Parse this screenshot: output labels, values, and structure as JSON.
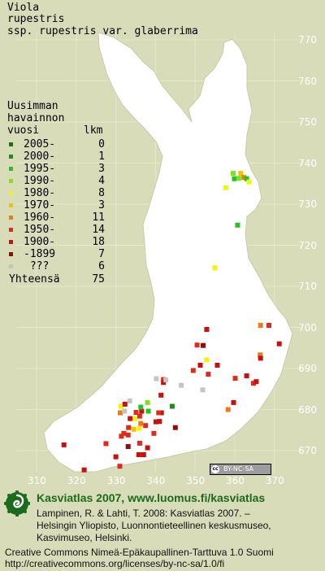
{
  "title": {
    "line1": "Viola",
    "line2": "rupestris",
    "line3": "ssp. rupestris var. glaberrima"
  },
  "legend": {
    "head1": "Uusimman",
    "head2": "havainnon",
    "head3": "vuosi",
    "head3_count": "lkm",
    "rows": [
      {
        "label": "2005-",
        "count": "0",
        "color": "#0a7a0a"
      },
      {
        "label": "2000-",
        "count": "1",
        "color": "#1e8c1e"
      },
      {
        "label": "1995-",
        "count": "3",
        "color": "#22c422"
      },
      {
        "label": "1990-",
        "count": "4",
        "color": "#7ee21a"
      },
      {
        "label": "1980-",
        "count": "8",
        "color": "#f4f40a"
      },
      {
        "label": "1970-",
        "count": "3",
        "color": "#f0c400"
      },
      {
        "label": "1960-",
        "count": "11",
        "color": "#f07a10"
      },
      {
        "label": "1950-",
        "count": "14",
        "color": "#e02a1a"
      },
      {
        "label": "1900-",
        "count": "18",
        "color": "#c81010"
      },
      {
        "label": "-1899",
        "count": "7",
        "color": "#960a0a"
      },
      {
        "label": " ???",
        "count": "6",
        "color": "#c4c4c4"
      }
    ],
    "total_label": "Yhteensä",
    "total_count": "75"
  },
  "y_axis": [
    "770",
    "760",
    "750",
    "740",
    "730",
    "720",
    "710",
    "700",
    "690",
    "680",
    "670"
  ],
  "x_axis": [
    "310",
    "320",
    "330",
    "340",
    "350",
    "360",
    "370"
  ],
  "cc_badge": {
    "icon": "cc",
    "text": "BY-NC-SA"
  },
  "footer": {
    "title": "Kasviatlas 2007, www.luomus.fi/kasviatlas",
    "line1": "Lampinen, R. & Lahti, T. 2008: Kasviatlas 2007. –",
    "line2": "Helsingin Yliopisto, Luonnontieteellinen keskusmuseo,",
    "line3": "Kasvimuseo, Helsinki.",
    "license1": "Creative Commons Nimeä-Epäkaupallinen-Tarttuva 1.0 Suomi",
    "license2": "http://creativecommons.org/licenses/by-nc-sa/1.0/fi"
  },
  "map": {
    "land_color": "#ffffff",
    "background_color": "#d8dcb8",
    "grid_color": "#e4e8cc",
    "observations": [
      {
        "x": 359.6,
        "y": 737.5,
        "c": 3
      },
      {
        "x": 361.5,
        "y": 737.5,
        "c": 5
      },
      {
        "x": 362.3,
        "y": 736.5,
        "c": 6
      },
      {
        "x": 359.9,
        "y": 736.2,
        "c": 2
      },
      {
        "x": 361.0,
        "y": 736.3,
        "c": 3
      },
      {
        "x": 363.0,
        "y": 736.2,
        "c": 2
      },
      {
        "x": 363.6,
        "y": 735.4,
        "c": 4
      },
      {
        "x": 357.7,
        "y": 734.0,
        "c": 4
      },
      {
        "x": 360.7,
        "y": 724.9,
        "c": 2
      },
      {
        "x": 355.0,
        "y": 714.5,
        "c": 4
      },
      {
        "x": 366.5,
        "y": 700.5,
        "c": 6
      },
      {
        "x": 368.6,
        "y": 700.5,
        "c": 7
      },
      {
        "x": 371.2,
        "y": 696.0,
        "c": 8
      },
      {
        "x": 366.4,
        "y": 693.3,
        "c": 6
      },
      {
        "x": 366.5,
        "y": 692.5,
        "c": 8
      },
      {
        "x": 363.0,
        "y": 688.2,
        "c": 8
      },
      {
        "x": 364.7,
        "y": 686.4,
        "c": 7
      },
      {
        "x": 365.4,
        "y": 686.8,
        "c": 8
      },
      {
        "x": 360.1,
        "y": 687.6,
        "c": 7
      },
      {
        "x": 359.7,
        "y": 681.7,
        "c": 8
      },
      {
        "x": 358.3,
        "y": 680.0,
        "c": 6
      },
      {
        "x": 352.9,
        "y": 699.5,
        "c": 8
      },
      {
        "x": 352.0,
        "y": 695.6,
        "c": 9
      },
      {
        "x": 352.9,
        "y": 692.1,
        "c": 4
      },
      {
        "x": 353.3,
        "y": 688.6,
        "c": 7
      },
      {
        "x": 355.6,
        "y": 690.8,
        "c": 8
      },
      {
        "x": 350.5,
        "y": 695.7,
        "c": 7
      },
      {
        "x": 349.5,
        "y": 689.5,
        "c": 7
      },
      {
        "x": 351.3,
        "y": 690.8,
        "c": 8
      },
      {
        "x": 351.9,
        "y": 684.8,
        "c": 10
      },
      {
        "x": 344.2,
        "y": 680.8,
        "c": 1
      },
      {
        "x": 342.0,
        "y": 687.3,
        "c": 7
      },
      {
        "x": 342.0,
        "y": 686.6,
        "c": 8
      },
      {
        "x": 342.6,
        "y": 687.2,
        "c": 10
      },
      {
        "x": 341.4,
        "y": 683.5,
        "c": 8
      },
      {
        "x": 341.5,
        "y": 679.2,
        "c": 8
      },
      {
        "x": 340.8,
        "y": 679.2,
        "c": 7
      },
      {
        "x": 340.1,
        "y": 677.0,
        "c": 8
      },
      {
        "x": 341.0,
        "y": 677.1,
        "c": 8
      },
      {
        "x": 345.0,
        "y": 675.6,
        "c": 9
      },
      {
        "x": 339.6,
        "y": 674.2,
        "c": 7
      },
      {
        "x": 336.5,
        "y": 679.6,
        "c": 8
      },
      {
        "x": 335.1,
        "y": 679.3,
        "c": 7
      },
      {
        "x": 331.3,
        "y": 680.8,
        "c": 4
      },
      {
        "x": 332.3,
        "y": 681.3,
        "c": 8
      },
      {
        "x": 331.1,
        "y": 679.2,
        "c": 6
      },
      {
        "x": 336.3,
        "y": 680.6,
        "c": 2
      },
      {
        "x": 338.2,
        "y": 679.6,
        "c": 2
      },
      {
        "x": 338.0,
        "y": 681.7,
        "c": 3
      },
      {
        "x": 336.0,
        "y": 678.4,
        "c": 7
      },
      {
        "x": 333.6,
        "y": 677.8,
        "c": 8
      },
      {
        "x": 334.8,
        "y": 677.8,
        "c": 4
      },
      {
        "x": 334.5,
        "y": 675.2,
        "c": 5
      },
      {
        "x": 335.9,
        "y": 675.4,
        "c": 4
      },
      {
        "x": 337.5,
        "y": 676.1,
        "c": 7
      },
      {
        "x": 336.3,
        "y": 676.6,
        "c": 6
      },
      {
        "x": 333.2,
        "y": 675.6,
        "c": 7
      },
      {
        "x": 333.1,
        "y": 673.8,
        "c": 7
      },
      {
        "x": 336.0,
        "y": 671.8,
        "c": 7
      },
      {
        "x": 338.0,
        "y": 670.7,
        "c": 8
      },
      {
        "x": 337.0,
        "y": 669.0,
        "c": 8
      },
      {
        "x": 335.8,
        "y": 669.0,
        "c": 8
      },
      {
        "x": 333.1,
        "y": 671.0,
        "c": 9
      },
      {
        "x": 332.0,
        "y": 674.2,
        "c": 7
      },
      {
        "x": 331.4,
        "y": 673.5,
        "c": 7
      },
      {
        "x": 332.2,
        "y": 679.6,
        "c": 10
      },
      {
        "x": 333.5,
        "y": 682.1,
        "c": 10
      },
      {
        "x": 340.2,
        "y": 687.5,
        "c": 10
      },
      {
        "x": 346.5,
        "y": 685.9,
        "c": 10
      },
      {
        "x": 327.5,
        "y": 671.7,
        "c": 7
      },
      {
        "x": 330.0,
        "y": 668.5,
        "c": 8
      },
      {
        "x": 316.9,
        "y": 671.4,
        "c": 8
      },
      {
        "x": 322.0,
        "y": 665.3,
        "c": 8
      },
      {
        "x": 331.0,
        "y": 666.2,
        "c": 7
      }
    ]
  }
}
